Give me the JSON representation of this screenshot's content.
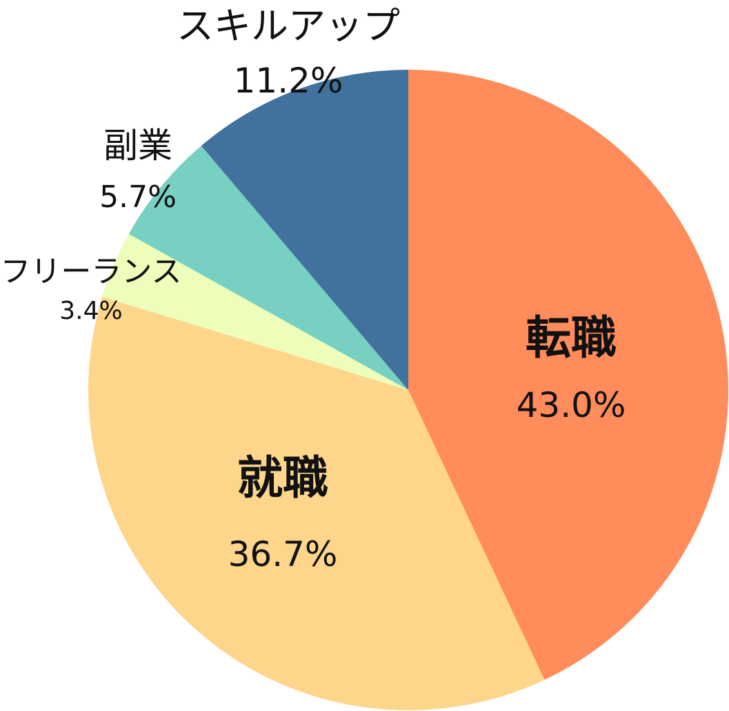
{
  "chart_data": {
    "type": "pie",
    "start_angle": "12 o'clock",
    "direction": "clockwise",
    "title": "",
    "slices": [
      {
        "name": "転職",
        "value": 43.0,
        "value_label": "43.0%",
        "color": "#FF8C5A"
      },
      {
        "name": "就職",
        "value": 36.7,
        "value_label": "36.7%",
        "color": "#FDD58B"
      },
      {
        "name": "フリーランス",
        "value": 3.4,
        "value_label": "3.4%",
        "color": "#EDFDBA"
      },
      {
        "name": "副業",
        "value": 5.7,
        "value_label": "5.7%",
        "color": "#77D0C2"
      },
      {
        "name": "スキルアップ",
        "value": 11.2,
        "value_label": "11.2%",
        "color": "#41729E"
      }
    ]
  }
}
